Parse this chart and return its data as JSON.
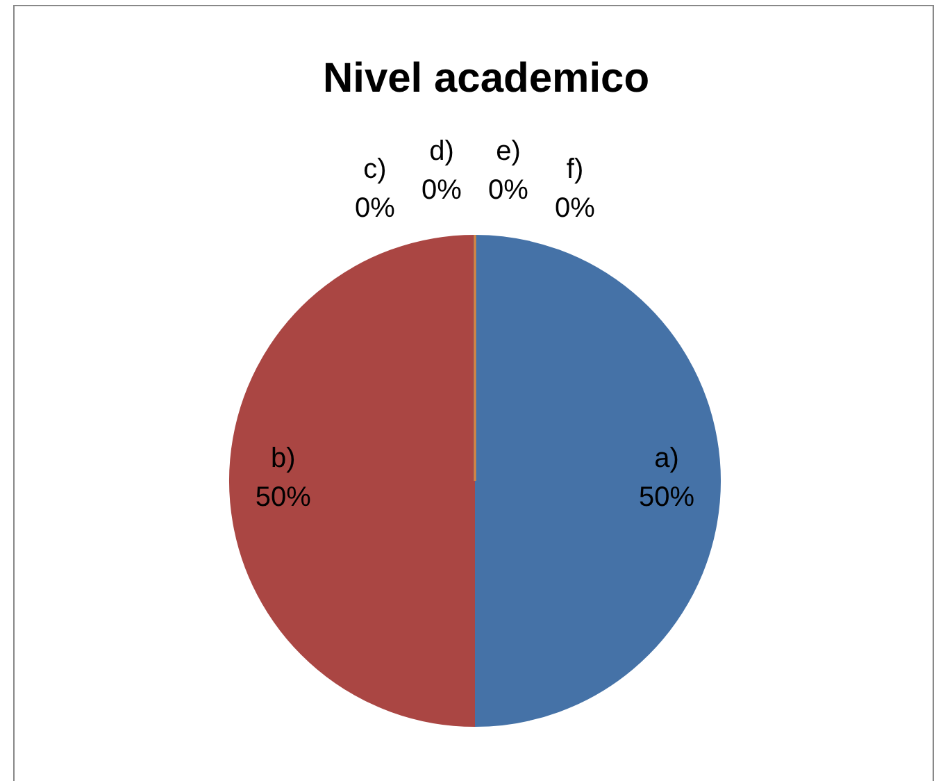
{
  "chart_data": {
    "type": "pie",
    "title": "Nivel academico",
    "categories": [
      "a)",
      "b)",
      "c)",
      "d)",
      "e)",
      "f)"
    ],
    "values": [
      50,
      50,
      0,
      0,
      0,
      0
    ],
    "colors": [
      "#4572a7",
      "#aa4643",
      "#89a54e",
      "#71588f",
      "#4198af",
      "#db843d"
    ],
    "value_labels": [
      "50%",
      "50%",
      "0%",
      "0%",
      "0%",
      "0%"
    ],
    "data_labels": true,
    "legend": false
  }
}
